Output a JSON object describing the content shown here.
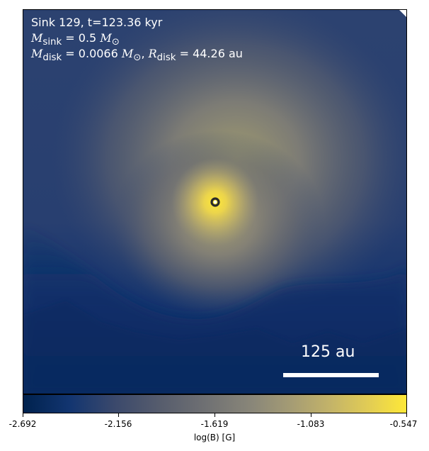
{
  "annotation": {
    "title": "Sink 129, t=123.36 kyr",
    "m_sink_symbol": "M",
    "m_sink_sub": "sink",
    "m_sink_value": " = 0.5 ",
    "m_sink_unit": "M",
    "m_sink_unit_sub": "⊙",
    "m_disk_symbol": "M",
    "m_disk_sub": "disk",
    "m_disk_value": " = 0.0066 ",
    "m_disk_unit": "M",
    "m_disk_unit_sub": "⊙",
    "m_disk_sep": ", ",
    "r_disk_symbol": "R",
    "r_disk_sub": "disk",
    "r_disk_value": " = 44.26 au"
  },
  "scale_bar": {
    "label": "125 au"
  },
  "colorbar": {
    "label": "log(B) [G]",
    "ticks": [
      "-2.692",
      "-2.156",
      "-1.619",
      "-1.083",
      "-0.547"
    ],
    "colormap": "cividis"
  },
  "colors": {
    "background_field": "#1e3a6e",
    "peak": "#fee838",
    "sink_marker": "#2b2b2b"
  }
}
